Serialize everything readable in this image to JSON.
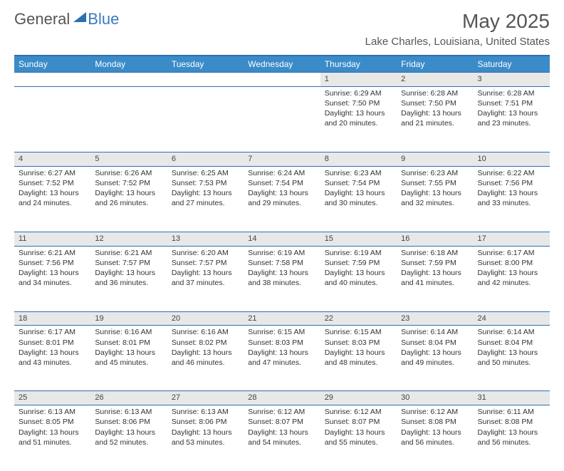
{
  "logo": {
    "part1": "General",
    "part2": "Blue"
  },
  "title": "May 2025",
  "location": "Lake Charles, Louisiana, United States",
  "columns": [
    "Sunday",
    "Monday",
    "Tuesday",
    "Wednesday",
    "Thursday",
    "Friday",
    "Saturday"
  ],
  "colors": {
    "header_bg": "#3b8bc9",
    "header_border": "#2d6fb3",
    "daynum_bg": "#e8e8e8",
    "text": "#333333",
    "background": "#ffffff"
  },
  "typography": {
    "title_fontsize": 28,
    "location_fontsize": 15,
    "header_fontsize": 12,
    "cell_fontsize": 10.5
  },
  "weeks": [
    [
      null,
      null,
      null,
      null,
      {
        "n": "1",
        "sr": "6:29 AM",
        "ss": "7:50 PM",
        "dl": "13 hours and 20 minutes."
      },
      {
        "n": "2",
        "sr": "6:28 AM",
        "ss": "7:50 PM",
        "dl": "13 hours and 21 minutes."
      },
      {
        "n": "3",
        "sr": "6:28 AM",
        "ss": "7:51 PM",
        "dl": "13 hours and 23 minutes."
      }
    ],
    [
      {
        "n": "4",
        "sr": "6:27 AM",
        "ss": "7:52 PM",
        "dl": "13 hours and 24 minutes."
      },
      {
        "n": "5",
        "sr": "6:26 AM",
        "ss": "7:52 PM",
        "dl": "13 hours and 26 minutes."
      },
      {
        "n": "6",
        "sr": "6:25 AM",
        "ss": "7:53 PM",
        "dl": "13 hours and 27 minutes."
      },
      {
        "n": "7",
        "sr": "6:24 AM",
        "ss": "7:54 PM",
        "dl": "13 hours and 29 minutes."
      },
      {
        "n": "8",
        "sr": "6:23 AM",
        "ss": "7:54 PM",
        "dl": "13 hours and 30 minutes."
      },
      {
        "n": "9",
        "sr": "6:23 AM",
        "ss": "7:55 PM",
        "dl": "13 hours and 32 minutes."
      },
      {
        "n": "10",
        "sr": "6:22 AM",
        "ss": "7:56 PM",
        "dl": "13 hours and 33 minutes."
      }
    ],
    [
      {
        "n": "11",
        "sr": "6:21 AM",
        "ss": "7:56 PM",
        "dl": "13 hours and 34 minutes."
      },
      {
        "n": "12",
        "sr": "6:21 AM",
        "ss": "7:57 PM",
        "dl": "13 hours and 36 minutes."
      },
      {
        "n": "13",
        "sr": "6:20 AM",
        "ss": "7:57 PM",
        "dl": "13 hours and 37 minutes."
      },
      {
        "n": "14",
        "sr": "6:19 AM",
        "ss": "7:58 PM",
        "dl": "13 hours and 38 minutes."
      },
      {
        "n": "15",
        "sr": "6:19 AM",
        "ss": "7:59 PM",
        "dl": "13 hours and 40 minutes."
      },
      {
        "n": "16",
        "sr": "6:18 AM",
        "ss": "7:59 PM",
        "dl": "13 hours and 41 minutes."
      },
      {
        "n": "17",
        "sr": "6:17 AM",
        "ss": "8:00 PM",
        "dl": "13 hours and 42 minutes."
      }
    ],
    [
      {
        "n": "18",
        "sr": "6:17 AM",
        "ss": "8:01 PM",
        "dl": "13 hours and 43 minutes."
      },
      {
        "n": "19",
        "sr": "6:16 AM",
        "ss": "8:01 PM",
        "dl": "13 hours and 45 minutes."
      },
      {
        "n": "20",
        "sr": "6:16 AM",
        "ss": "8:02 PM",
        "dl": "13 hours and 46 minutes."
      },
      {
        "n": "21",
        "sr": "6:15 AM",
        "ss": "8:03 PM",
        "dl": "13 hours and 47 minutes."
      },
      {
        "n": "22",
        "sr": "6:15 AM",
        "ss": "8:03 PM",
        "dl": "13 hours and 48 minutes."
      },
      {
        "n": "23",
        "sr": "6:14 AM",
        "ss": "8:04 PM",
        "dl": "13 hours and 49 minutes."
      },
      {
        "n": "24",
        "sr": "6:14 AM",
        "ss": "8:04 PM",
        "dl": "13 hours and 50 minutes."
      }
    ],
    [
      {
        "n": "25",
        "sr": "6:13 AM",
        "ss": "8:05 PM",
        "dl": "13 hours and 51 minutes."
      },
      {
        "n": "26",
        "sr": "6:13 AM",
        "ss": "8:06 PM",
        "dl": "13 hours and 52 minutes."
      },
      {
        "n": "27",
        "sr": "6:13 AM",
        "ss": "8:06 PM",
        "dl": "13 hours and 53 minutes."
      },
      {
        "n": "28",
        "sr": "6:12 AM",
        "ss": "8:07 PM",
        "dl": "13 hours and 54 minutes."
      },
      {
        "n": "29",
        "sr": "6:12 AM",
        "ss": "8:07 PM",
        "dl": "13 hours and 55 minutes."
      },
      {
        "n": "30",
        "sr": "6:12 AM",
        "ss": "8:08 PM",
        "dl": "13 hours and 56 minutes."
      },
      {
        "n": "31",
        "sr": "6:11 AM",
        "ss": "8:08 PM",
        "dl": "13 hours and 56 minutes."
      }
    ]
  ],
  "labels": {
    "sunrise": "Sunrise:",
    "sunset": "Sunset:",
    "daylight": "Daylight:"
  }
}
